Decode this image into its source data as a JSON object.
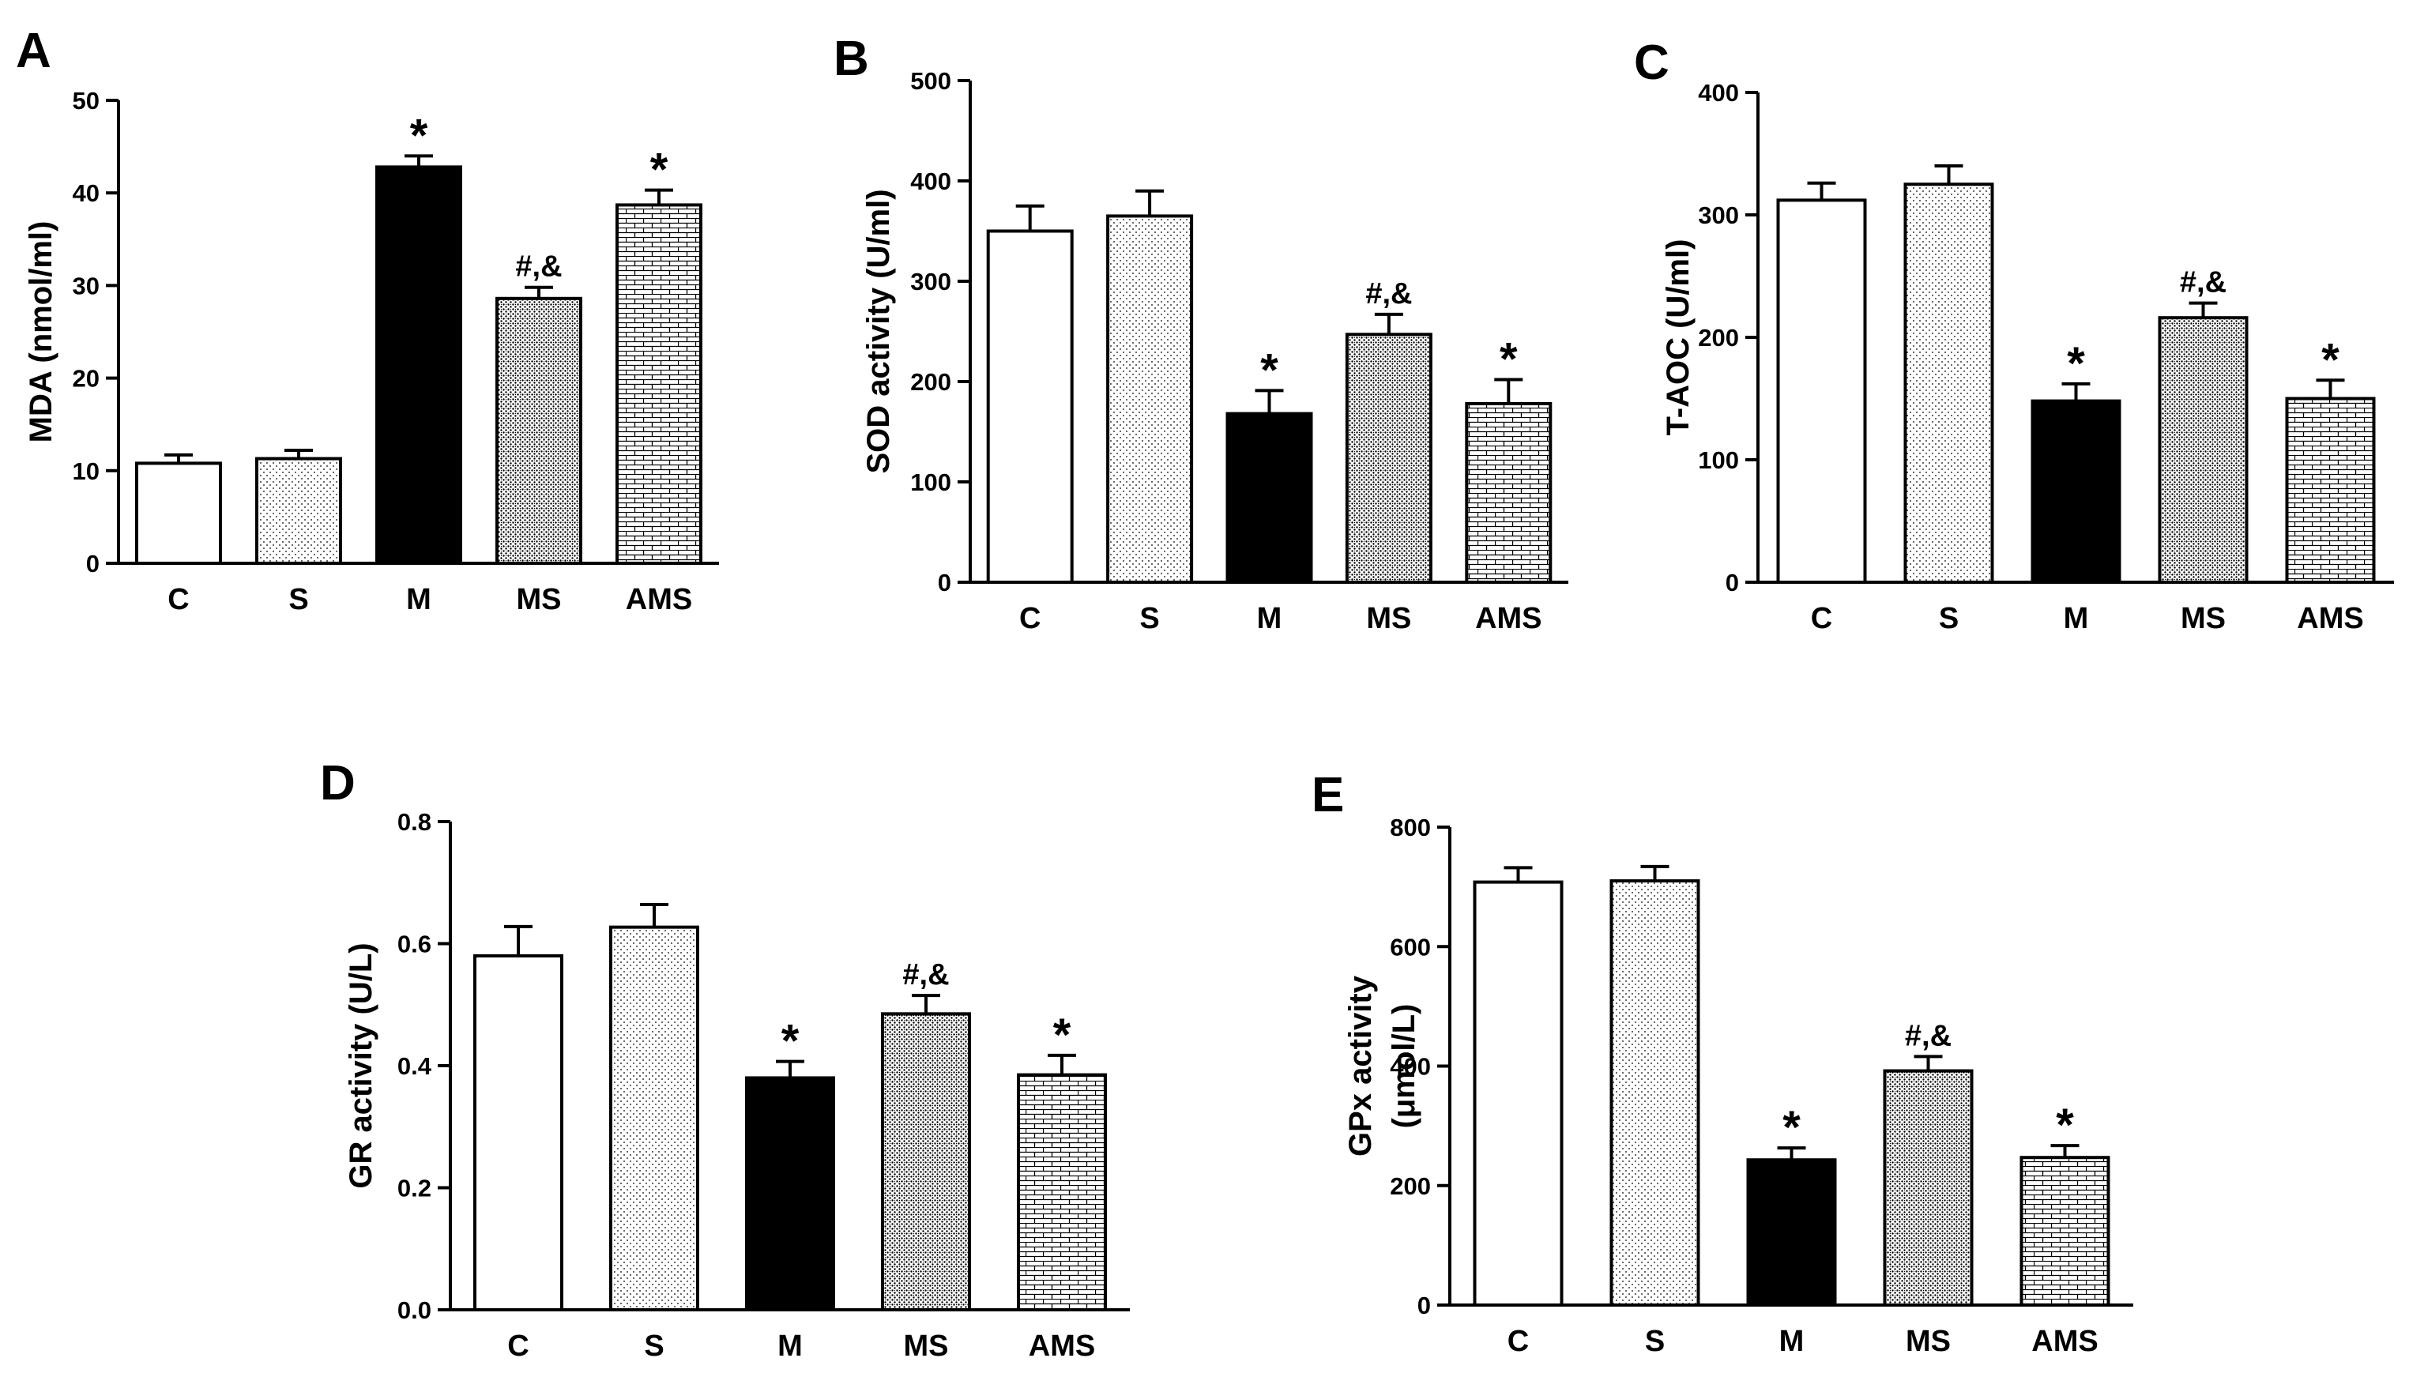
{
  "colors": {
    "background": "#ffffff",
    "ink": "#000000"
  },
  "chart_data": [
    {
      "panel": "A",
      "type": "bar",
      "ylabel": "MDA (nmol/ml)",
      "ylim": [
        0,
        50
      ],
      "yticks": [
        0,
        10,
        20,
        30,
        40,
        50
      ],
      "categories": [
        "C",
        "S",
        "M",
        "MS",
        "AMS"
      ],
      "values": [
        10.8,
        11.3,
        42.8,
        28.6,
        38.7
      ],
      "errors": [
        0.9,
        0.9,
        1.2,
        1.2,
        1.6
      ],
      "annotations": [
        "",
        "",
        "*",
        "#,&",
        "*"
      ],
      "fills": [
        "white",
        "dots-sparse",
        "black",
        "dots-dense",
        "bricks"
      ]
    },
    {
      "panel": "B",
      "type": "bar",
      "ylabel": "SOD activity (U/ml)",
      "ylim": [
        0,
        500
      ],
      "yticks": [
        0,
        100,
        200,
        300,
        400,
        500
      ],
      "categories": [
        "C",
        "S",
        "M",
        "MS",
        "AMS"
      ],
      "values": [
        350,
        365,
        168,
        247,
        178
      ],
      "errors": [
        25,
        25,
        23,
        20,
        24
      ],
      "annotations": [
        "",
        "",
        "*",
        "#,&",
        "*"
      ],
      "fills": [
        "white",
        "dots-sparse",
        "black",
        "dots-dense",
        "bricks"
      ]
    },
    {
      "panel": "C",
      "type": "bar",
      "ylabel": "T-AOC (U/ml)",
      "ylim": [
        0,
        400
      ],
      "yticks": [
        0,
        100,
        200,
        300,
        400
      ],
      "categories": [
        "C",
        "S",
        "M",
        "MS",
        "AMS"
      ],
      "values": [
        312,
        325,
        148,
        216,
        150
      ],
      "errors": [
        14,
        15,
        14,
        12,
        15
      ],
      "annotations": [
        "",
        "",
        "*",
        "#,&",
        "*"
      ],
      "fills": [
        "white",
        "dots-sparse",
        "black",
        "dots-dense",
        "bricks"
      ]
    },
    {
      "panel": "D",
      "type": "bar",
      "ylabel": "GR activity (U/L)",
      "ylim": [
        0,
        0.8
      ],
      "yticks": [
        0.0,
        0.2,
        0.4,
        0.6,
        0.8
      ],
      "tick_decimals": 1,
      "categories": [
        "C",
        "S",
        "M",
        "MS",
        "AMS"
      ],
      "values": [
        0.58,
        0.627,
        0.38,
        0.485,
        0.385
      ],
      "errors": [
        0.048,
        0.037,
        0.027,
        0.03,
        0.032
      ],
      "annotations": [
        "",
        "",
        "*",
        "#,&",
        "*"
      ],
      "fills": [
        "white",
        "dots-sparse",
        "black",
        "dots-dense",
        "bricks"
      ]
    },
    {
      "panel": "E",
      "type": "bar",
      "ylabel": "GPx  activity",
      "ylabel2": "(μmol/L)",
      "ylim": [
        0,
        800
      ],
      "yticks": [
        0,
        200,
        400,
        600,
        800
      ],
      "categories": [
        "C",
        "S",
        "M",
        "MS",
        "AMS"
      ],
      "values": [
        708,
        710,
        243,
        392,
        247
      ],
      "errors": [
        24,
        24,
        20,
        24,
        20
      ],
      "annotations": [
        "",
        "",
        "*",
        "#,&",
        "*"
      ],
      "fills": [
        "white",
        "dots-sparse",
        "black",
        "dots-dense",
        "bricks"
      ]
    }
  ]
}
